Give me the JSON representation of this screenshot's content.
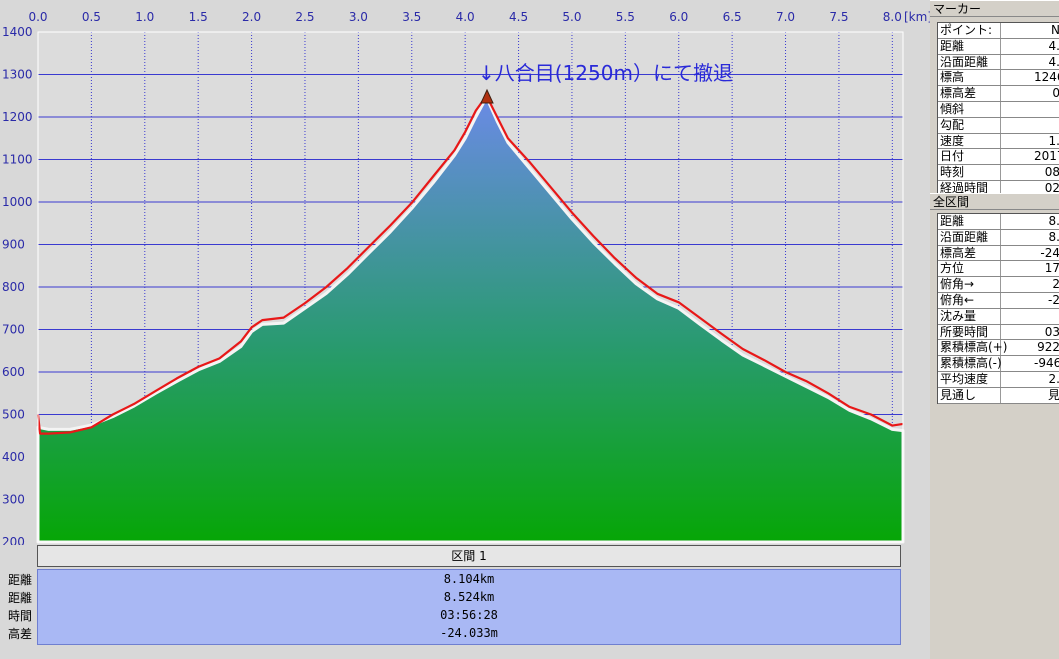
{
  "chart_data": {
    "type": "area",
    "xunit": "[km]",
    "xlim": [
      0,
      8.1
    ],
    "ylim": [
      200,
      1400
    ],
    "xticks": [
      "0.0",
      "0.5",
      "1.0",
      "1.5",
      "2.0",
      "2.5",
      "3.0",
      "3.5",
      "4.0",
      "4.5",
      "5.0",
      "5.5",
      "6.0",
      "6.5",
      "7.0",
      "7.5",
      "8.0"
    ],
    "yticks": [
      "1400",
      "1300",
      "1200",
      "1100",
      "1000",
      "900",
      "800",
      "700",
      "600",
      "500",
      "400",
      "300",
      "200"
    ],
    "grid": true,
    "annotation": {
      "text": "↓八合目(1250m）にて撤退",
      "x": 4.2,
      "y": 1250
    },
    "series": [
      {
        "x": [
          0,
          0.1,
          0.3,
          0.5,
          0.7,
          0.9,
          1.1,
          1.3,
          1.5,
          1.7,
          1.9,
          2.0,
          2.1,
          2.3,
          2.5,
          2.7,
          2.9,
          3.1,
          3.3,
          3.5,
          3.7,
          3.9,
          4.0,
          4.1,
          4.2,
          4.3,
          4.4,
          4.6,
          4.8,
          5.0,
          5.2,
          5.4,
          5.6,
          5.8,
          6.0,
          6.2,
          6.4,
          6.6,
          6.8,
          7.0,
          7.2,
          7.4,
          7.6,
          7.8,
          8.0,
          8.1
        ],
        "y": [
          470,
          465,
          465,
          475,
          495,
          520,
          550,
          578,
          605,
          625,
          660,
          695,
          712,
          715,
          750,
          785,
          830,
          880,
          930,
          985,
          1045,
          1110,
          1150,
          1200,
          1246,
          1190,
          1140,
          1080,
          1020,
          960,
          905,
          855,
          808,
          772,
          750,
          712,
          675,
          640,
          615,
          590,
          565,
          540,
          510,
          490,
          465,
          462
        ]
      },
      {
        "x": [
          0,
          0.02,
          0.1,
          0.3,
          0.5,
          0.7,
          0.9,
          1.1,
          1.3,
          1.5,
          1.7,
          1.9,
          2.0,
          2.1,
          2.3,
          2.5,
          2.7,
          2.9,
          3.1,
          3.3,
          3.5,
          3.7,
          3.9,
          4.0,
          4.1,
          4.2,
          4.3,
          4.4,
          4.6,
          4.8,
          5.0,
          5.2,
          5.4,
          5.6,
          5.8,
          6.0,
          6.2,
          6.4,
          6.6,
          6.8,
          7.0,
          7.2,
          7.4,
          7.6,
          7.8,
          8.0,
          8.1
        ],
        "y": [
          500,
          455,
          455,
          458,
          470,
          500,
          525,
          555,
          585,
          612,
          632,
          672,
          705,
          722,
          728,
          762,
          800,
          845,
          895,
          945,
          998,
          1060,
          1122,
          1165,
          1215,
          1250,
          1200,
          1150,
          1095,
          1035,
          975,
          920,
          868,
          822,
          784,
          764,
          727,
          690,
          654,
          628,
          600,
          578,
          550,
          518,
          500,
          474,
          478
        ]
      }
    ]
  },
  "section": {
    "header": "区間 1",
    "labels": [
      "距離",
      "距離",
      "時間",
      "高差"
    ],
    "values": [
      "8.104km",
      "8.524km",
      "03:56:28",
      "-24.033m"
    ]
  },
  "marker_panel": {
    "title": "マーカー",
    "rows": [
      {
        "k": "ポイント:",
        "v": "N"
      },
      {
        "k": "距離",
        "v": "4."
      },
      {
        "k": "沿面距離",
        "v": "4."
      },
      {
        "k": "標高",
        "v": "1246"
      },
      {
        "k": "標高差",
        "v": "0"
      },
      {
        "k": "傾斜",
        "v": ""
      },
      {
        "k": "勾配",
        "v": ""
      },
      {
        "k": "速度",
        "v": "1."
      },
      {
        "k": "日付",
        "v": "2017/"
      },
      {
        "k": "時刻",
        "v": "08"
      },
      {
        "k": "経過時間",
        "v": "02"
      }
    ]
  },
  "total_panel": {
    "title": "全区間",
    "rows": [
      {
        "k": "距離",
        "v": "8."
      },
      {
        "k": "沿面距離",
        "v": "8."
      },
      {
        "k": "標高差",
        "v": "-24"
      },
      {
        "k": "方位",
        "v": "17"
      },
      {
        "k": "俯角→",
        "v": "2"
      },
      {
        "k": "俯角←",
        "v": "-2"
      },
      {
        "k": "沈み量",
        "v": ""
      },
      {
        "k": "所要時間",
        "v": "03"
      },
      {
        "k": "累積標高(+)",
        "v": "922"
      },
      {
        "k": "累積標高(-)",
        "v": "-946"
      },
      {
        "k": "平均速度",
        "v": "2."
      },
      {
        "k": "見通し",
        "v": "見"
      }
    ]
  },
  "colors": {
    "plot_bg": "#dcdcdc",
    "grid": "#3a3ad0",
    "fill_top": "#6c8ae8",
    "fill_bottom": "#06a606",
    "line": "#e81818",
    "border_light": "#ffffff"
  }
}
